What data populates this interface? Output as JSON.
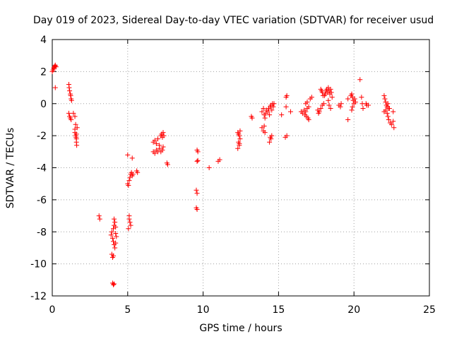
{
  "chart_data": {
    "type": "scatter",
    "title": "Day 019 of 2023, Sidereal Day-to-day VTEC variation (SDTVAR) for receiver usud",
    "xlabel": "GPS time / hours",
    "ylabel": "SDTVAR / TECUs",
    "xlim": [
      0,
      25
    ],
    "ylim": [
      -12,
      4
    ],
    "xticks": [
      0,
      5,
      10,
      15,
      20,
      25
    ],
    "yticks": [
      -12,
      -10,
      -8,
      -6,
      -4,
      -2,
      0,
      2,
      4
    ],
    "grid": true,
    "marker": "+",
    "color": "#ff0000",
    "series": [
      {
        "name": "SDTVAR",
        "points": [
          [
            0.0,
            2.0
          ],
          [
            0.05,
            2.1
          ],
          [
            0.1,
            2.2
          ],
          [
            0.12,
            2.25
          ],
          [
            0.15,
            2.3
          ],
          [
            0.18,
            2.35
          ],
          [
            0.2,
            2.4
          ],
          [
            0.25,
            2.3
          ],
          [
            0.2,
            1.0
          ],
          [
            1.1,
            1.2
          ],
          [
            1.12,
            1.0
          ],
          [
            1.15,
            0.8
          ],
          [
            1.2,
            0.6
          ],
          [
            1.22,
            0.5
          ],
          [
            1.25,
            0.3
          ],
          [
            1.28,
            0.2
          ],
          [
            1.1,
            -0.6
          ],
          [
            1.15,
            -0.8
          ],
          [
            1.2,
            -0.9
          ],
          [
            1.25,
            -1.0
          ],
          [
            1.4,
            -0.6
          ],
          [
            1.5,
            -0.8
          ],
          [
            1.55,
            -1.3
          ],
          [
            1.5,
            -1.6
          ],
          [
            1.5,
            -1.8
          ],
          [
            1.55,
            -2.0
          ],
          [
            1.6,
            -2.2
          ],
          [
            1.6,
            -2.4
          ],
          [
            1.62,
            -2.6
          ],
          [
            1.65,
            -1.5
          ],
          [
            1.6,
            -1.9
          ],
          [
            1.58,
            -2.1
          ],
          [
            3.1,
            -7.0
          ],
          [
            3.15,
            -7.2
          ],
          [
            3.9,
            -8.2
          ],
          [
            3.95,
            -8.0
          ],
          [
            4.0,
            -8.4
          ],
          [
            4.05,
            -7.8
          ],
          [
            4.1,
            -7.6
          ],
          [
            4.1,
            -7.2
          ],
          [
            4.15,
            -7.4
          ],
          [
            4.2,
            -7.7
          ],
          [
            4.2,
            -8.1
          ],
          [
            4.25,
            -8.3
          ],
          [
            4.05,
            -8.6
          ],
          [
            4.1,
            -8.8
          ],
          [
            4.15,
            -9.0
          ],
          [
            4.2,
            -8.7
          ],
          [
            3.95,
            -9.4
          ],
          [
            4.0,
            -9.6
          ],
          [
            4.05,
            -9.5
          ],
          [
            4.0,
            -11.2
          ],
          [
            4.05,
            -11.3
          ],
          [
            4.1,
            -11.25
          ],
          [
            5.0,
            -3.2
          ],
          [
            5.3,
            -3.4
          ],
          [
            5.0,
            -5.0
          ],
          [
            5.05,
            -5.1
          ],
          [
            5.1,
            -4.8
          ],
          [
            5.15,
            -4.6
          ],
          [
            5.2,
            -4.4
          ],
          [
            5.25,
            -4.3
          ],
          [
            5.3,
            -4.5
          ],
          [
            5.35,
            -4.4
          ],
          [
            5.1,
            -7.2
          ],
          [
            5.15,
            -7.4
          ],
          [
            5.2,
            -7.6
          ],
          [
            5.05,
            -7.8
          ],
          [
            5.1,
            -7.0
          ],
          [
            5.6,
            -4.2
          ],
          [
            5.65,
            -4.3
          ],
          [
            6.7,
            -2.4
          ],
          [
            6.8,
            -2.3
          ],
          [
            6.9,
            -2.5
          ],
          [
            7.0,
            -2.2
          ],
          [
            7.1,
            -2.6
          ],
          [
            6.7,
            -3.0
          ],
          [
            6.8,
            -3.1
          ],
          [
            6.9,
            -2.9
          ],
          [
            7.0,
            -3.0
          ],
          [
            7.1,
            -2.8
          ],
          [
            7.2,
            -2.0
          ],
          [
            7.25,
            -1.9
          ],
          [
            7.3,
            -2.1
          ],
          [
            7.35,
            -1.8
          ],
          [
            7.4,
            -2.0
          ],
          [
            7.2,
            -3.0
          ],
          [
            7.3,
            -2.9
          ],
          [
            7.35,
            -2.7
          ],
          [
            7.6,
            -3.7
          ],
          [
            7.65,
            -3.8
          ],
          [
            9.6,
            -2.9
          ],
          [
            9.65,
            -3.0
          ],
          [
            9.6,
            -3.6
          ],
          [
            9.65,
            -3.55
          ],
          [
            9.55,
            -5.4
          ],
          [
            9.6,
            -5.6
          ],
          [
            9.55,
            -6.5
          ],
          [
            9.6,
            -6.6
          ],
          [
            10.4,
            -4.0
          ],
          [
            11.0,
            -3.6
          ],
          [
            11.1,
            -3.5
          ],
          [
            12.3,
            -1.8
          ],
          [
            12.35,
            -1.9
          ],
          [
            12.4,
            -2.0
          ],
          [
            12.45,
            -2.2
          ],
          [
            12.35,
            -2.4
          ],
          [
            12.4,
            -2.6
          ],
          [
            12.3,
            -2.8
          ],
          [
            12.4,
            -2.5
          ],
          [
            12.45,
            -1.7
          ],
          [
            13.2,
            -0.8
          ],
          [
            13.25,
            -0.9
          ],
          [
            13.9,
            -0.5
          ],
          [
            14.0,
            -0.3
          ],
          [
            14.05,
            -0.7
          ],
          [
            14.1,
            -0.9
          ],
          [
            14.15,
            -0.6
          ],
          [
            14.2,
            -0.4
          ],
          [
            14.3,
            -0.5
          ],
          [
            14.35,
            -0.3
          ],
          [
            14.4,
            -0.7
          ],
          [
            14.45,
            -0.2
          ],
          [
            14.5,
            -0.1
          ],
          [
            14.55,
            -0.4
          ],
          [
            14.6,
            0.0
          ],
          [
            13.9,
            -1.5
          ],
          [
            14.0,
            -1.7
          ],
          [
            14.05,
            -1.4
          ],
          [
            14.1,
            -1.8
          ],
          [
            14.45,
            -2.1
          ],
          [
            14.5,
            -2.2
          ],
          [
            14.55,
            -2.0
          ],
          [
            14.4,
            -2.4
          ],
          [
            14.65,
            -0.2
          ],
          [
            14.7,
            0.0
          ],
          [
            15.2,
            -0.7
          ],
          [
            15.5,
            0.4
          ],
          [
            15.55,
            0.5
          ],
          [
            15.5,
            -0.2
          ],
          [
            15.45,
            -2.1
          ],
          [
            15.55,
            -2.0
          ],
          [
            15.8,
            -0.5
          ],
          [
            16.5,
            -0.5
          ],
          [
            16.6,
            -0.6
          ],
          [
            16.7,
            -0.4
          ],
          [
            16.75,
            -0.7
          ],
          [
            16.8,
            -0.5
          ],
          [
            16.85,
            -0.8
          ],
          [
            16.9,
            -0.3
          ],
          [
            16.95,
            -0.9
          ],
          [
            17.0,
            -1.0
          ],
          [
            16.8,
            0.0
          ],
          [
            16.9,
            0.1
          ],
          [
            17.0,
            -0.2
          ],
          [
            17.1,
            0.3
          ],
          [
            17.2,
            0.4
          ],
          [
            17.6,
            -0.4
          ],
          [
            17.7,
            -0.5
          ],
          [
            17.8,
            -0.3
          ],
          [
            17.65,
            -0.6
          ],
          [
            17.9,
            -0.1
          ],
          [
            18.0,
            0.0
          ],
          [
            18.05,
            0.5
          ],
          [
            18.1,
            0.6
          ],
          [
            18.15,
            0.8
          ],
          [
            18.2,
            0.9
          ],
          [
            18.25,
            0.7
          ],
          [
            18.3,
            1.0
          ],
          [
            18.35,
            0.8
          ],
          [
            18.4,
            0.6
          ],
          [
            18.45,
            0.9
          ],
          [
            18.5,
            0.7
          ],
          [
            18.55,
            0.4
          ],
          [
            18.3,
            0.2
          ],
          [
            18.35,
            -0.1
          ],
          [
            18.45,
            -0.3
          ],
          [
            17.8,
            0.9
          ],
          [
            17.85,
            0.8
          ],
          [
            17.9,
            0.7
          ],
          [
            17.95,
            0.5
          ],
          [
            19.0,
            -0.1
          ],
          [
            19.1,
            -0.2
          ],
          [
            19.15,
            0.0
          ],
          [
            19.6,
            0.3
          ],
          [
            19.8,
            0.5
          ],
          [
            19.85,
            0.6
          ],
          [
            19.9,
            0.4
          ],
          [
            19.95,
            0.2
          ],
          [
            20.0,
            0.0
          ],
          [
            19.9,
            -0.2
          ],
          [
            19.85,
            -0.4
          ],
          [
            20.05,
            0.3
          ],
          [
            20.1,
            0.1
          ],
          [
            19.6,
            -1.0
          ],
          [
            20.4,
            1.5
          ],
          [
            20.5,
            0.4
          ],
          [
            20.55,
            0.0
          ],
          [
            20.6,
            -0.3
          ],
          [
            20.8,
            0.0
          ],
          [
            20.85,
            -0.1
          ],
          [
            20.95,
            -0.1
          ],
          [
            22.0,
            0.5
          ],
          [
            22.05,
            0.3
          ],
          [
            22.1,
            0.1
          ],
          [
            22.15,
            -0.1
          ],
          [
            22.2,
            -0.2
          ],
          [
            22.25,
            0.0
          ],
          [
            22.3,
            -0.3
          ],
          [
            22.0,
            -0.5
          ],
          [
            22.1,
            -0.4
          ],
          [
            22.2,
            -0.6
          ],
          [
            22.25,
            -0.8
          ],
          [
            22.3,
            -1.0
          ],
          [
            22.35,
            -0.3
          ],
          [
            22.6,
            -0.5
          ],
          [
            22.4,
            -1.2
          ],
          [
            22.6,
            -1.1
          ],
          [
            22.65,
            -1.5
          ],
          [
            22.5,
            -1.3
          ]
        ]
      }
    ]
  }
}
